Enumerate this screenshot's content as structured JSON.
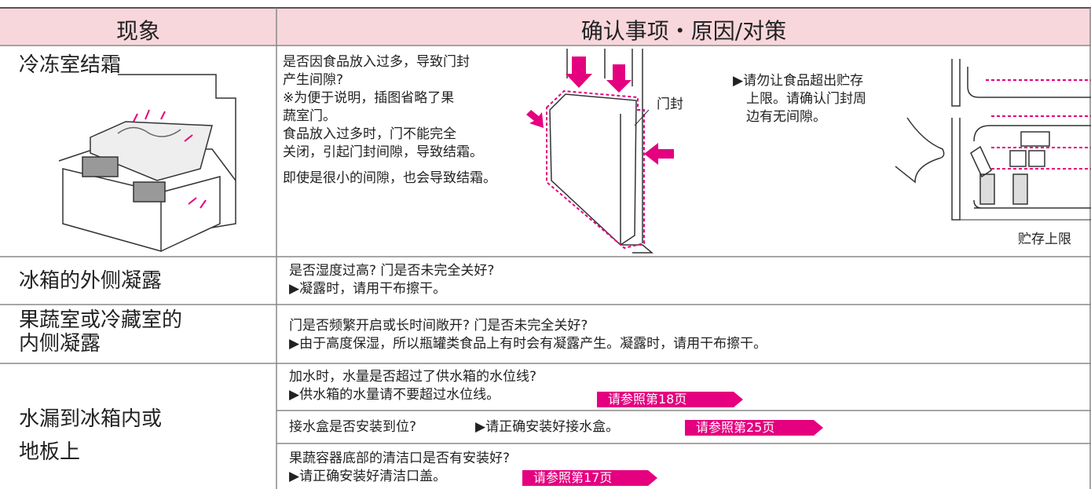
{
  "header": {
    "phenomenon": "现象",
    "check": "确认事项・原因/对策"
  },
  "rows": [
    {
      "phenomenon": [
        "冷冻室结霜"
      ],
      "text": [
        "是否因食品放入过多，导致门封",
        "产生间隙?",
        "※为便于说明，插图省略了果",
        "蔬室门。",
        "食品放入过多时，门不能完全",
        "关闭，引起门封间隙，导致结霜。",
        "即使是很小的间隙，也会导致结霜。"
      ],
      "door_label": "门封",
      "advice": [
        "▶请勿让食品超出贮存",
        "上限。请确认门封周",
        "边有无间隙。"
      ],
      "limit_label": "贮存上限"
    },
    {
      "phenomenon": [
        "冰箱的外侧凝露"
      ],
      "text": [
        "是否湿度过高? 门是否未完全关好?",
        "▶凝露时，请用干布擦干。"
      ]
    },
    {
      "phenomenon": [
        "果蔬室或冷藏室的",
        "内侧凝露"
      ],
      "text": [
        "门是否频繁开启或长时间敞开? 门是否未完全关好?",
        "▶由于高度保湿，所以瓶罐类食品上有时会有凝露产生。凝露时，请用干布擦干。"
      ]
    },
    {
      "phenomenon": [
        "水漏到冰箱内或",
        "地板上"
      ],
      "items": [
        {
          "text": [
            "加水时，水量是否超过了供水箱的水位线?",
            "▶供水箱的水量请不要超过水位线。"
          ],
          "link": "请参照第18页"
        },
        {
          "text": [
            "接水盒是否安装到位?",
            "▶请正确安装好接水盒。"
          ],
          "link": "请参照第25页"
        },
        {
          "text": [
            "果蔬容器底部的清洁口是否有安装好?",
            "▶请正确安装好清洁口盖。"
          ],
          "link": "请参照第17页"
        }
      ]
    }
  ]
}
